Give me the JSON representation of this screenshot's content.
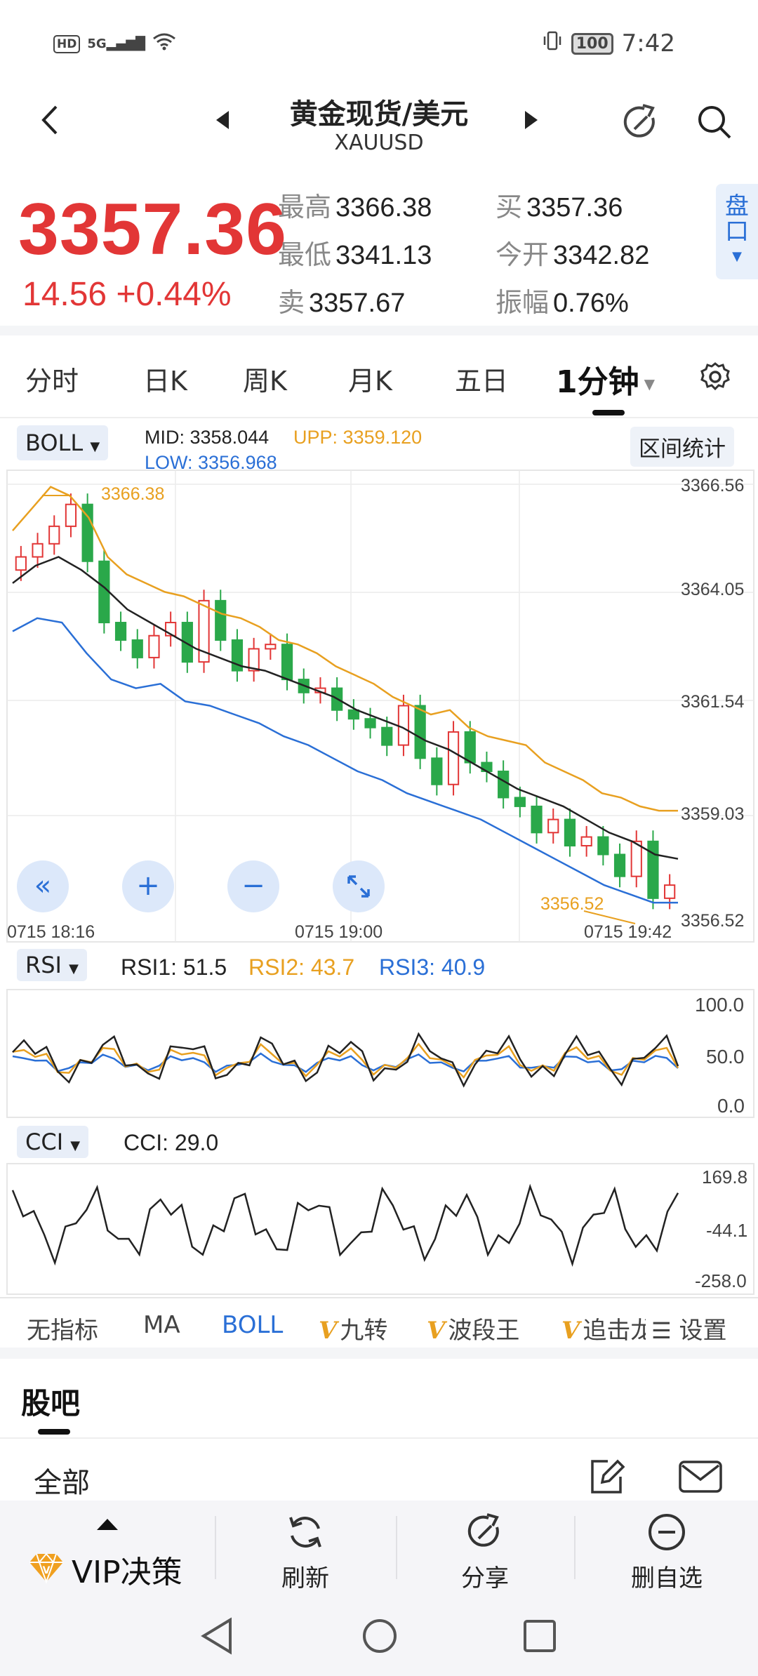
{
  "status": {
    "left_icons": "HD 5G signal wifi",
    "hd": "HD",
    "net": "5G",
    "battery": "100",
    "time": "7:42"
  },
  "header": {
    "title": "黄金现货/美元",
    "subtitle": "XAUUSD"
  },
  "quote": {
    "price": "3357.36",
    "change": "14.56 +0.44%",
    "high_label": "最高",
    "high": "3366.38",
    "low_label": "最低",
    "low": "3341.13",
    "sell_label": "卖",
    "sell": "3357.67",
    "buy_label": "买",
    "buy": "3357.36",
    "open_label": "今开",
    "open": "3342.82",
    "amp_label": "振幅",
    "amp": "0.76%",
    "pankou": "盘口"
  },
  "tabs": [
    "分时",
    "日K",
    "周K",
    "月K",
    "五日",
    "1分钟"
  ],
  "main_chart": {
    "indicator": "BOLL",
    "mid_label": "MID:",
    "mid": "3358.044",
    "upp_label": "UPP:",
    "upp": "3359.120",
    "low_label": "LOW:",
    "low": "3356.968",
    "range_button": "区间统计",
    "high_marker": "3366.38",
    "low_marker": "3356.52",
    "y_ticks": [
      "3366.56",
      "3364.05",
      "3361.54",
      "3359.03",
      "3356.52"
    ],
    "x_ticks": [
      "0715  18:16",
      "0715  19:00",
      "0715  19:42"
    ]
  },
  "rsi": {
    "indicator": "RSI",
    "rsi1": "RSI1: 51.5",
    "rsi2": "RSI2: 43.7",
    "rsi3": "RSI3: 40.9",
    "y_ticks": [
      "100.0",
      "50.0",
      "0.0"
    ]
  },
  "cci": {
    "indicator": "CCI",
    "cci": "CCI: 29.0",
    "y_ticks": [
      "169.8",
      "-44.1",
      "-258.0"
    ]
  },
  "indicators": {
    "items": [
      "无指标",
      "MA",
      "BOLL",
      "九转",
      "波段王",
      "追击龙"
    ],
    "settings": "设置",
    "v": "V"
  },
  "forum": {
    "title": "股吧",
    "filter": "全部"
  },
  "bottom": {
    "vip": "VIP决策",
    "refresh": "刷新",
    "share": "分享",
    "remove": "删自选"
  },
  "colors": {
    "up": "#e23636",
    "down": "#2aa84a",
    "upp": "#e8a020",
    "low": "#2a6fd6",
    "mid": "#222222"
  },
  "chart_data": {
    "type": "candlestick",
    "title": "黄金现货/美元 1分钟",
    "ylim": [
      3356.52,
      3366.56
    ],
    "series": [
      {
        "name": "close",
        "values": [
          3364.9,
          3365.2,
          3365.6,
          3366.1,
          3364.8,
          3363.4,
          3363.0,
          3362.6,
          3363.1,
          3363.4,
          3362.5,
          3363.9,
          3363.0,
          3362.3,
          3362.8,
          3362.9,
          3362.1,
          3361.8,
          3361.9,
          3361.4,
          3361.2,
          3361.0,
          3360.6,
          3361.5,
          3360.3,
          3359.7,
          3360.9,
          3360.2,
          3360.0,
          3359.4,
          3359.2,
          3358.6,
          3358.9,
          3358.3,
          3358.5,
          3358.1,
          3357.6,
          3358.4,
          3357.1,
          3357.4
        ]
      },
      {
        "name": "UPP",
        "values": [
          3365.5,
          3366.0,
          3366.5,
          3366.3,
          3365.8,
          3364.9,
          3364.5,
          3364.3,
          3364.1,
          3364.0,
          3363.8,
          3363.6,
          3363.5,
          3363.3,
          3363.0,
          3362.9,
          3362.7,
          3362.4,
          3362.2,
          3362.0,
          3361.7,
          3361.5,
          3361.3,
          3361.4,
          3361.0,
          3360.8,
          3360.7,
          3360.6,
          3360.2,
          3360.0,
          3359.8,
          3359.5,
          3359.4,
          3359.2,
          3359.1,
          3359.1
        ]
      },
      {
        "name": "MID",
        "values": [
          3364.3,
          3364.7,
          3364.9,
          3364.6,
          3364.2,
          3363.7,
          3363.4,
          3363.1,
          3362.8,
          3362.6,
          3362.4,
          3362.3,
          3362.1,
          3361.9,
          3361.7,
          3361.4,
          3361.2,
          3361.0,
          3360.7,
          3360.5,
          3360.2,
          3359.9,
          3359.6,
          3359.4,
          3359.2,
          3358.9,
          3358.6,
          3358.4,
          3358.1,
          3358.0
        ]
      },
      {
        "name": "LOW",
        "values": [
          3363.2,
          3363.5,
          3363.4,
          3362.7,
          3362.1,
          3361.9,
          3362.0,
          3361.6,
          3361.5,
          3361.3,
          3361.1,
          3360.8,
          3360.6,
          3360.3,
          3360.0,
          3359.8,
          3359.5,
          3359.3,
          3359.1,
          3358.9,
          3358.6,
          3358.3,
          3358.0,
          3357.7,
          3357.4,
          3357.2,
          3357.0,
          3357.0
        ]
      }
    ]
  }
}
